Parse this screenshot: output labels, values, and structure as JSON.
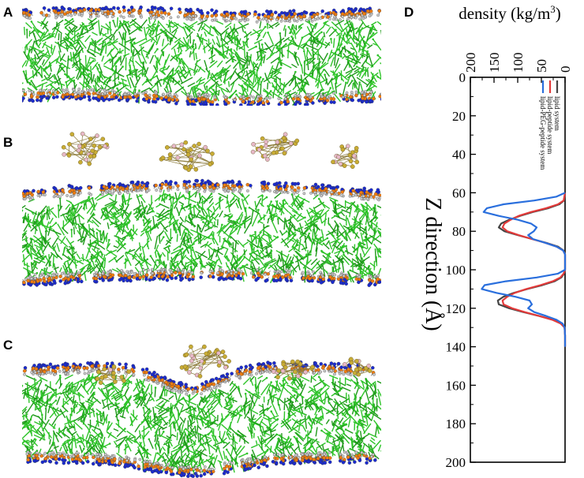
{
  "figure": {
    "panel_labels": [
      "A",
      "B",
      "C",
      "D"
    ]
  },
  "colors": {
    "tail": "#2fc42a",
    "tail_dark": "#1f9a1a",
    "glycerol": "#c9c9c9",
    "phosphate": "#f07d10",
    "nitrogen": "#1b2bd0",
    "peptide_gold": "#c8ac35",
    "peptide_pink": "#e7b8c8",
    "lipid_line": "#444444",
    "peptide_line": "#e23a3a",
    "peg_line": "#2a6fdd"
  },
  "chart_data": {
    "type": "line",
    "orientation": "rotated-90",
    "title": "",
    "xlabel": "Z direction (Å)",
    "ylabel_prefix": "density (kg/m",
    "ylabel_sup": "3",
    "ylabel_suffix": ")",
    "xlim": [
      0,
      200
    ],
    "ylim": [
      0,
      200
    ],
    "xticks": [
      "0",
      "20",
      "40",
      "60",
      "80",
      "100",
      "120",
      "140",
      "160",
      "180",
      "200"
    ],
    "yticks": [
      "0",
      "50",
      "100",
      "150",
      "200"
    ],
    "legend": [
      "lipid system",
      "lipid-peptide system",
      "lipid-PEG-peptide system"
    ],
    "legend_position": "top-left",
    "series": [
      {
        "name": "lipid system",
        "x": [
          60,
          64,
          66,
          68,
          70,
          72,
          74,
          76,
          78,
          80,
          82,
          84,
          86,
          88,
          90,
          92,
          96,
          100,
          102,
          104,
          106,
          108,
          110,
          112,
          114,
          116,
          118,
          120,
          122,
          124,
          126,
          128,
          130,
          134,
          140
        ],
        "values": [
          0,
          2,
          12,
          35,
          68,
          95,
          118,
          135,
          140,
          128,
          100,
          70,
          40,
          15,
          3,
          0,
          0,
          0,
          2,
          8,
          22,
          48,
          80,
          108,
          130,
          142,
          140,
          118,
          88,
          55,
          25,
          8,
          1,
          0,
          0
        ]
      },
      {
        "name": "lipid-peptide system",
        "x": [
          60,
          64,
          66,
          68,
          70,
          72,
          74,
          76,
          78,
          80,
          82,
          84,
          86,
          88,
          90,
          92,
          96,
          100,
          102,
          104,
          106,
          108,
          110,
          112,
          114,
          116,
          118,
          120,
          122,
          124,
          126,
          128,
          130,
          134,
          140
        ],
        "values": [
          0,
          3,
          15,
          40,
          72,
          98,
          115,
          128,
          132,
          122,
          98,
          70,
          42,
          18,
          4,
          0,
          0,
          0,
          3,
          10,
          26,
          52,
          82,
          106,
          122,
          132,
          130,
          112,
          85,
          55,
          27,
          9,
          1,
          0,
          0
        ]
      },
      {
        "name": "lipid-PEG-peptide system",
        "x": [
          60,
          62,
          64,
          66,
          68,
          70,
          72,
          74,
          76,
          78,
          80,
          82,
          84,
          86,
          88,
          90,
          92,
          96,
          100,
          102,
          104,
          106,
          108,
          110,
          112,
          114,
          116,
          118,
          120,
          122,
          124,
          126,
          128,
          130,
          134,
          140
        ],
        "values": [
          0,
          18,
          65,
          130,
          165,
          172,
          140,
          100,
          72,
          60,
          66,
          78,
          68,
          42,
          18,
          4,
          0,
          0,
          0,
          15,
          60,
          125,
          170,
          176,
          145,
          105,
          75,
          70,
          78,
          65,
          40,
          18,
          5,
          1,
          0,
          0
        ]
      }
    ]
  }
}
